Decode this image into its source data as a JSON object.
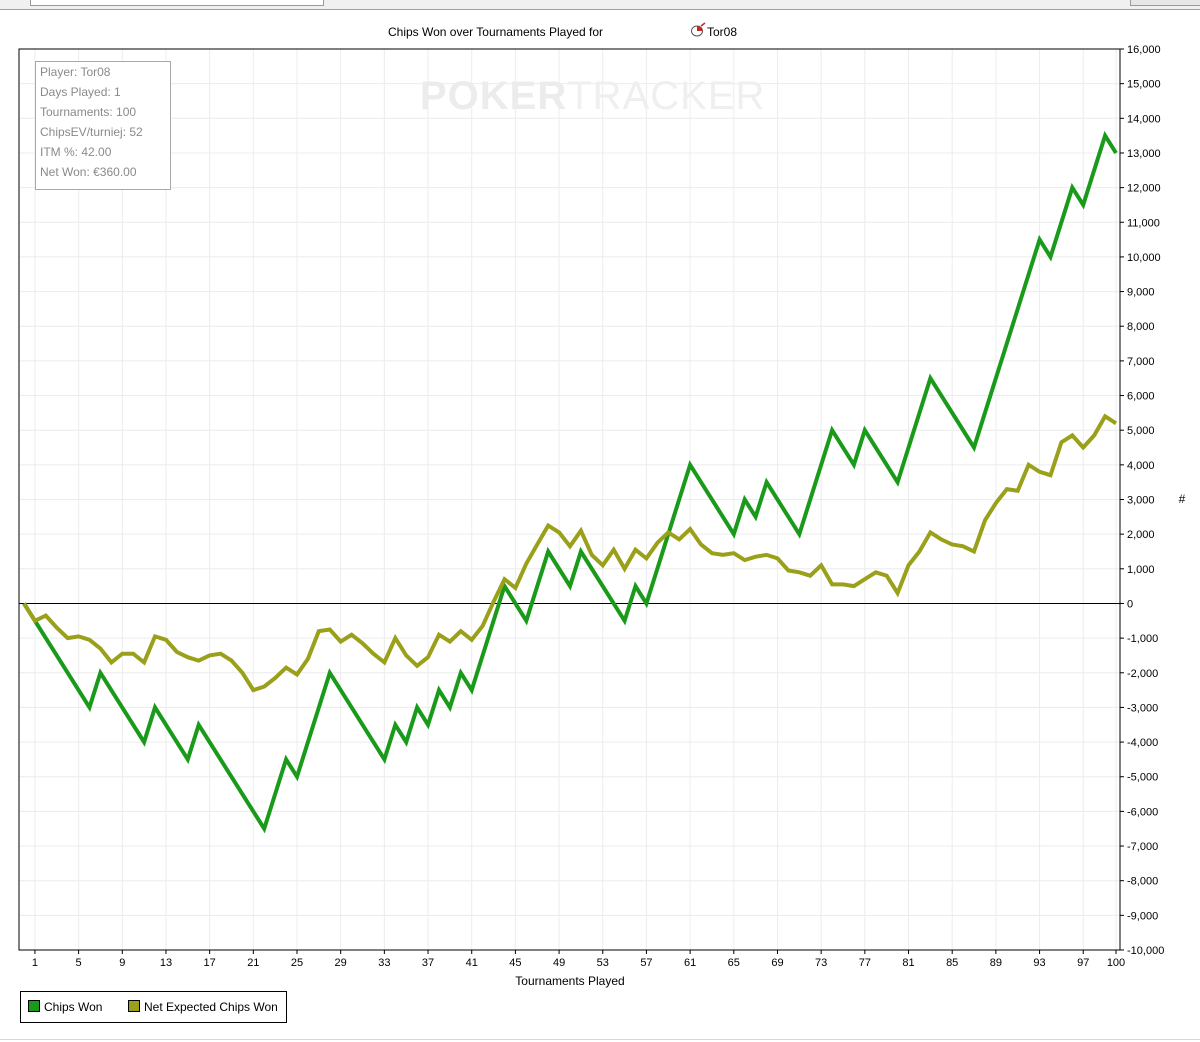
{
  "window": {
    "toolbar": "toolbar"
  },
  "info_box": {
    "player": "Player: Tor08",
    "days": "Days Played: 1",
    "tournaments": "Tournaments: 100",
    "chipsev": "ChipsEV/turniej: 52",
    "itm": "ITM %: 42.00",
    "net": "Net Won: €360.00"
  },
  "watermark": {
    "part1": "POKER",
    "part2": "TRACKER"
  },
  "colors": {
    "chips_won": "#1a9a1a",
    "net_expected": "#9aa01a",
    "grid": "#ececec"
  },
  "chart_data": {
    "type": "line",
    "title": "Chips Won over Tournaments Played for",
    "title_player": "Tor08",
    "title_icon": "tor-icon",
    "xlabel": "Tournaments Played",
    "ylabel": "#",
    "xlim": [
      0,
      100
    ],
    "ylim": [
      -10000,
      16000
    ],
    "x_ticks": [
      1,
      5,
      9,
      13,
      17,
      21,
      25,
      29,
      33,
      37,
      41,
      45,
      49,
      53,
      57,
      61,
      65,
      69,
      73,
      77,
      81,
      85,
      89,
      93,
      97,
      100
    ],
    "y_ticks": [
      "16,000",
      "15,000",
      "14,000",
      "13,000",
      "12,000",
      "11,000",
      "10,000",
      "9,000",
      "8,000",
      "7,000",
      "6,000",
      "5,000",
      "4,000",
      "3,000",
      "2,000",
      "1,000",
      "0",
      "-1,000",
      "-2,000",
      "-3,000",
      "-4,000",
      "-5,000",
      "-6,000",
      "-7,000",
      "-8,000",
      "-9,000",
      "-10,000"
    ],
    "grid": true,
    "legend_position": "bottom-left",
    "series": [
      {
        "name": "Chips Won",
        "points": [
          [
            0,
            0
          ],
          [
            6,
            -3000
          ],
          [
            7,
            -2000
          ],
          [
            11,
            -4000
          ],
          [
            12,
            -3000
          ],
          [
            15,
            -4500
          ],
          [
            16,
            -3500
          ],
          [
            22,
            -6500
          ],
          [
            24,
            -4500
          ],
          [
            25,
            -5000
          ],
          [
            28,
            -2000
          ],
          [
            33,
            -4500
          ],
          [
            34,
            -3500
          ],
          [
            35,
            -4000
          ],
          [
            36,
            -3000
          ],
          [
            37,
            -3500
          ],
          [
            38,
            -2500
          ],
          [
            39,
            -3000
          ],
          [
            40,
            -2000
          ],
          [
            41,
            -2500
          ],
          [
            44,
            500
          ],
          [
            46,
            -500
          ],
          [
            48,
            1500
          ],
          [
            50,
            500
          ],
          [
            51,
            1500
          ],
          [
            55,
            -500
          ],
          [
            56,
            500
          ],
          [
            57,
            0
          ],
          [
            61,
            4000
          ],
          [
            65,
            2000
          ],
          [
            66,
            3000
          ],
          [
            67,
            2500
          ],
          [
            68,
            3500
          ],
          [
            71,
            2000
          ],
          [
            74,
            5000
          ],
          [
            76,
            4000
          ],
          [
            77,
            5000
          ],
          [
            80,
            3500
          ],
          [
            83,
            6500
          ],
          [
            87,
            4500
          ],
          [
            93,
            10500
          ],
          [
            94,
            10000
          ],
          [
            96,
            12000
          ],
          [
            97,
            11500
          ],
          [
            99,
            13500
          ],
          [
            100,
            13000
          ]
        ]
      },
      {
        "name": "Net Expected Chips Won",
        "points": [
          [
            0,
            0
          ],
          [
            1,
            -500
          ],
          [
            2,
            -350
          ],
          [
            3,
            -700
          ],
          [
            4,
            -1000
          ],
          [
            5,
            -950
          ],
          [
            6,
            -1050
          ],
          [
            7,
            -1300
          ],
          [
            8,
            -1700
          ],
          [
            9,
            -1450
          ],
          [
            10,
            -1450
          ],
          [
            11,
            -1700
          ],
          [
            12,
            -950
          ],
          [
            13,
            -1050
          ],
          [
            14,
            -1400
          ],
          [
            15,
            -1550
          ],
          [
            16,
            -1650
          ],
          [
            17,
            -1500
          ],
          [
            18,
            -1450
          ],
          [
            19,
            -1650
          ],
          [
            20,
            -2000
          ],
          [
            21,
            -2500
          ],
          [
            22,
            -2400
          ],
          [
            23,
            -2150
          ],
          [
            24,
            -1850
          ],
          [
            25,
            -2050
          ],
          [
            26,
            -1600
          ],
          [
            27,
            -800
          ],
          [
            28,
            -750
          ],
          [
            29,
            -1100
          ],
          [
            30,
            -900
          ],
          [
            31,
            -1150
          ],
          [
            32,
            -1450
          ],
          [
            33,
            -1700
          ],
          [
            34,
            -1000
          ],
          [
            35,
            -1500
          ],
          [
            36,
            -1800
          ],
          [
            37,
            -1550
          ],
          [
            38,
            -900
          ],
          [
            39,
            -1100
          ],
          [
            40,
            -800
          ],
          [
            41,
            -1050
          ],
          [
            42,
            -650
          ],
          [
            43,
            50
          ],
          [
            44,
            700
          ],
          [
            45,
            450
          ],
          [
            46,
            1150
          ],
          [
            47,
            1700
          ],
          [
            48,
            2250
          ],
          [
            49,
            2050
          ],
          [
            50,
            1650
          ],
          [
            51,
            2100
          ],
          [
            52,
            1400
          ],
          [
            53,
            1100
          ],
          [
            54,
            1550
          ],
          [
            55,
            1000
          ],
          [
            56,
            1550
          ],
          [
            57,
            1300
          ],
          [
            58,
            1750
          ],
          [
            59,
            2050
          ],
          [
            60,
            1850
          ],
          [
            61,
            2150
          ],
          [
            62,
            1700
          ],
          [
            63,
            1450
          ],
          [
            64,
            1400
          ],
          [
            65,
            1450
          ],
          [
            66,
            1250
          ],
          [
            67,
            1350
          ],
          [
            68,
            1400
          ],
          [
            69,
            1300
          ],
          [
            70,
            950
          ],
          [
            71,
            900
          ],
          [
            72,
            800
          ],
          [
            73,
            1100
          ],
          [
            74,
            550
          ],
          [
            75,
            550
          ],
          [
            76,
            500
          ],
          [
            77,
            700
          ],
          [
            78,
            900
          ],
          [
            79,
            800
          ],
          [
            80,
            300
          ],
          [
            81,
            1100
          ],
          [
            82,
            1500
          ],
          [
            83,
            2050
          ],
          [
            84,
            1850
          ],
          [
            85,
            1700
          ],
          [
            86,
            1650
          ],
          [
            87,
            1500
          ],
          [
            88,
            2400
          ],
          [
            89,
            2900
          ],
          [
            90,
            3300
          ],
          [
            91,
            3250
          ],
          [
            92,
            4000
          ],
          [
            93,
            3800
          ],
          [
            94,
            3700
          ],
          [
            95,
            4650
          ],
          [
            96,
            4850
          ],
          [
            97,
            4500
          ],
          [
            98,
            4850
          ],
          [
            99,
            5400
          ],
          [
            100,
            5200
          ]
        ]
      }
    ]
  }
}
